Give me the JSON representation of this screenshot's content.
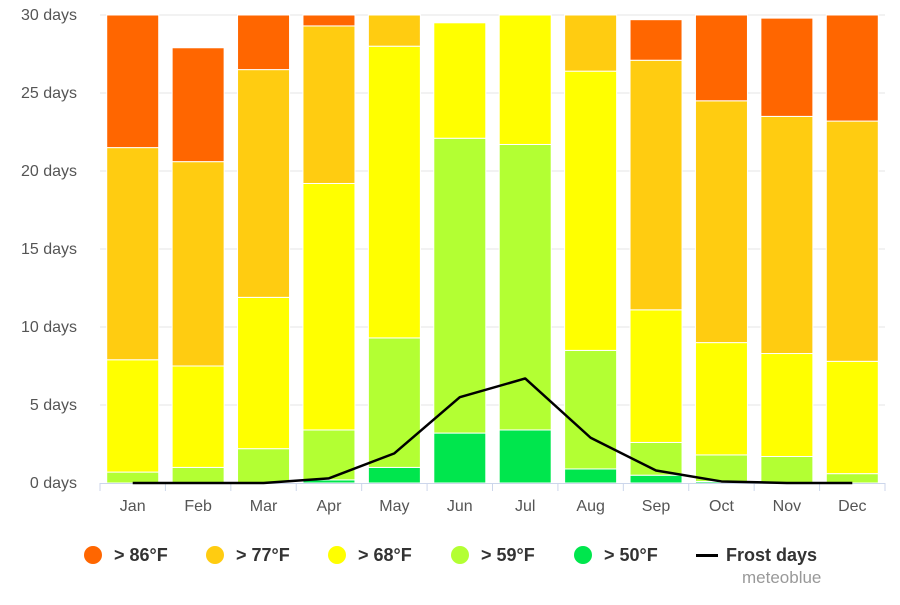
{
  "chart_data": {
    "type": "bar",
    "stacked": true,
    "categories": [
      "Jan",
      "Feb",
      "Mar",
      "Apr",
      "May",
      "Jun",
      "Jul",
      "Aug",
      "Sep",
      "Oct",
      "Nov",
      "Dec"
    ],
    "ylim": [
      0,
      30
    ],
    "yticks": [
      0,
      5,
      10,
      15,
      20,
      25,
      30
    ],
    "ytick_labels": [
      "0 days",
      "5 days",
      "10 days",
      "15 days",
      "20 days",
      "25 days",
      "30 days"
    ],
    "grid": true,
    "legend_position": "bottom",
    "series": [
      {
        "name": "> 50°F",
        "color": "#00e64d",
        "values": [
          0.0,
          0.0,
          0.0,
          0.2,
          1.0,
          3.2,
          3.4,
          0.9,
          0.5,
          0.1,
          0.0,
          0.0
        ]
      },
      {
        "name": "> 59°F",
        "color": "#b3ff33",
        "values": [
          0.7,
          1.0,
          2.2,
          3.2,
          8.3,
          18.9,
          18.3,
          7.6,
          2.1,
          1.7,
          1.7,
          0.6
        ]
      },
      {
        "name": "> 68°F",
        "color": "#ffff00",
        "values": [
          7.2,
          6.5,
          9.7,
          15.8,
          18.7,
          7.4,
          8.3,
          17.9,
          8.5,
          7.2,
          6.6,
          7.2
        ]
      },
      {
        "name": "> 77°F",
        "color": "#ffcc11",
        "values": [
          13.6,
          13.1,
          14.6,
          10.1,
          2.0,
          0.0,
          0.0,
          3.6,
          16.0,
          15.5,
          15.2,
          15.4
        ]
      },
      {
        "name": "> 86°F",
        "color": "#ff6600",
        "values": [
          9.5,
          7.3,
          4.5,
          0.7,
          0.0,
          0.0,
          0.0,
          0.0,
          2.6,
          6.5,
          6.3,
          6.8
        ]
      }
    ],
    "line_series": {
      "name": "Frost days",
      "color": "#000000",
      "values": [
        0.0,
        0.0,
        0.0,
        0.3,
        1.9,
        5.5,
        6.7,
        2.9,
        0.8,
        0.1,
        0.0,
        0.0
      ]
    }
  },
  "legend": {
    "items": [
      {
        "label": "> 86°F",
        "color": "#ff6600",
        "kind": "dot"
      },
      {
        "label": "> 77°F",
        "color": "#ffcc11",
        "kind": "dot"
      },
      {
        "label": "> 68°F",
        "color": "#ffff00",
        "kind": "dot"
      },
      {
        "label": "> 59°F",
        "color": "#b3ff33",
        "kind": "dot"
      },
      {
        "label": "> 50°F",
        "color": "#00e64d",
        "kind": "dot"
      },
      {
        "label": "Frost days",
        "color": "#000000",
        "kind": "line"
      }
    ]
  },
  "credit": "meteoblue"
}
